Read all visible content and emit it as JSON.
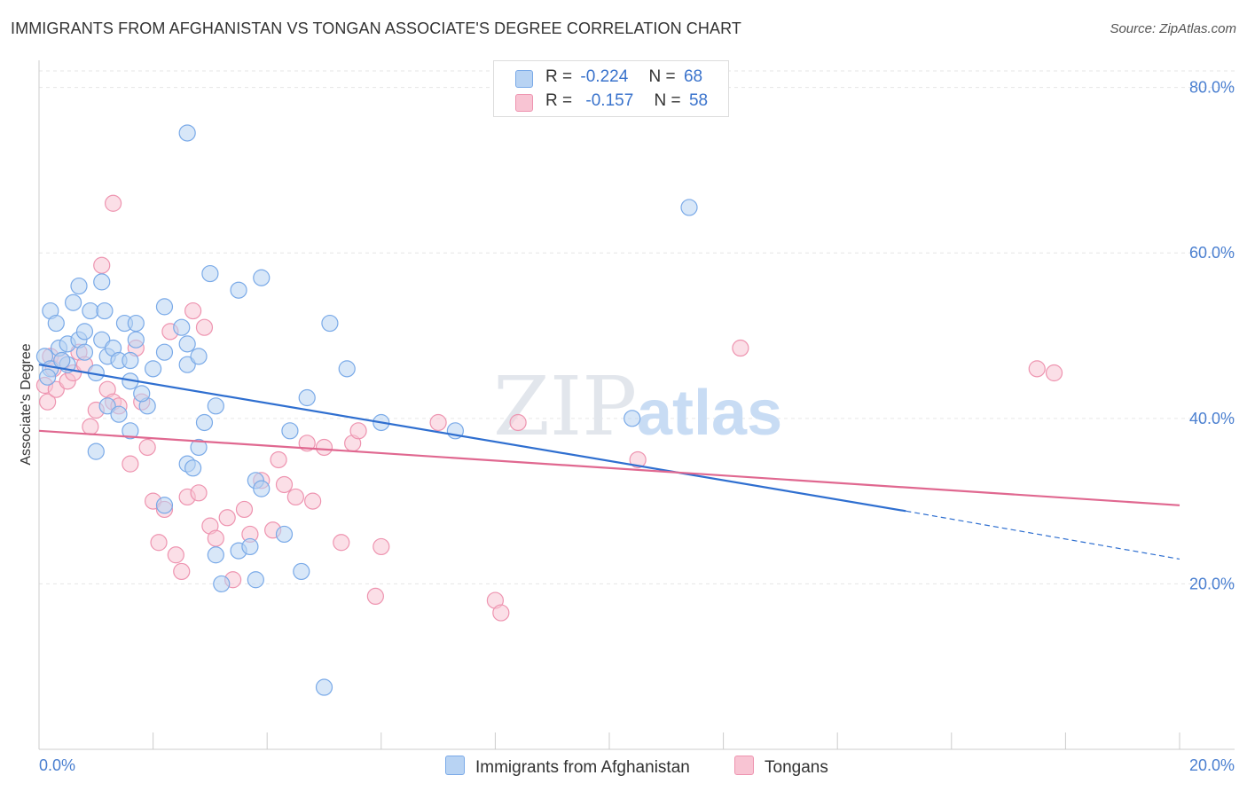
{
  "title": "IMMIGRANTS FROM AFGHANISTAN VS TONGAN ASSOCIATE'S DEGREE CORRELATION CHART",
  "source": "Source: ZipAtlas.com",
  "watermark": {
    "zip": "ZIP",
    "atlas": "atlas"
  },
  "legend_top": [
    {
      "r_label": "R =",
      "r_value": "-0.224",
      "n_label": "N =",
      "n_value": "68"
    },
    {
      "r_label": "R =",
      "r_value": "-0.157",
      "n_label": "N =",
      "n_value": "58"
    }
  ],
  "legend_bottom": [
    {
      "label": "Immigrants from Afghanistan"
    },
    {
      "label": "Tongans"
    }
  ],
  "colors": {
    "blue_fill": "#b8d3f3",
    "blue_stroke": "#7aaae8",
    "blue_line": "#2f6fd0",
    "pink_fill": "#f8c4d3",
    "pink_stroke": "#ee94b0",
    "pink_line": "#e06890",
    "tick_text": "#4a7fd0",
    "grid": "#e6e6e6"
  },
  "chart_data": {
    "type": "scatter",
    "title": "IMMIGRANTS FROM AFGHANISTAN VS TONGAN ASSOCIATE'S DEGREE CORRELATION CHART",
    "xlabel": "",
    "ylabel": "Associate's Degree",
    "xlim": [
      0,
      20
    ],
    "ylim": [
      0,
      82
    ],
    "x_tick_labels": [
      "0.0%",
      "20.0%"
    ],
    "y_ticks": [
      20,
      40,
      60,
      80
    ],
    "y_tick_labels": [
      "20.0%",
      "40.0%",
      "60.0%",
      "80.0%"
    ],
    "grid": true,
    "series": [
      {
        "name": "Immigrants from Afghanistan",
        "r": -0.224,
        "n": 68,
        "trend": {
          "x": [
            0,
            15.2
          ],
          "y": [
            46.5,
            28.8
          ],
          "dashed_to": [
            20,
            23.0
          ]
        },
        "points": [
          [
            0.1,
            47.5
          ],
          [
            0.2,
            46.0
          ],
          [
            0.15,
            45.0
          ],
          [
            0.2,
            53.0
          ],
          [
            0.3,
            51.5
          ],
          [
            0.35,
            48.5
          ],
          [
            0.5,
            49.0
          ],
          [
            0.6,
            54.0
          ],
          [
            0.7,
            56.0
          ],
          [
            0.7,
            49.5
          ],
          [
            0.8,
            48.0
          ],
          [
            0.9,
            53.0
          ],
          [
            1.1,
            49.5
          ],
          [
            1.1,
            56.5
          ],
          [
            1.15,
            53.0
          ],
          [
            1.2,
            47.5
          ],
          [
            1.3,
            48.5
          ],
          [
            1.4,
            47.0
          ],
          [
            1.5,
            51.5
          ],
          [
            1.6,
            47.0
          ],
          [
            1.7,
            51.5
          ],
          [
            1.7,
            49.5
          ],
          [
            2.2,
            53.5
          ],
          [
            2.2,
            48.0
          ],
          [
            2.5,
            51.0
          ],
          [
            2.6,
            49.0
          ],
          [
            2.6,
            74.5
          ],
          [
            2.6,
            46.5
          ],
          [
            2.8,
            47.5
          ],
          [
            3.0,
            57.5
          ],
          [
            3.5,
            55.5
          ],
          [
            3.9,
            57.0
          ],
          [
            1.0,
            36.0
          ],
          [
            1.2,
            41.5
          ],
          [
            1.4,
            40.5
          ],
          [
            1.6,
            44.5
          ],
          [
            1.6,
            38.5
          ],
          [
            1.9,
            41.5
          ],
          [
            2.2,
            29.5
          ],
          [
            2.6,
            34.5
          ],
          [
            2.7,
            34.0
          ],
          [
            2.8,
            36.5
          ],
          [
            2.9,
            39.5
          ],
          [
            3.1,
            41.5
          ],
          [
            3.1,
            23.5
          ],
          [
            3.2,
            20.0
          ],
          [
            3.5,
            24.0
          ],
          [
            3.7,
            24.5
          ],
          [
            3.8,
            20.5
          ],
          [
            3.8,
            32.5
          ],
          [
            3.9,
            31.5
          ],
          [
            4.3,
            26.0
          ],
          [
            4.4,
            38.5
          ],
          [
            4.6,
            21.5
          ],
          [
            4.7,
            42.5
          ],
          [
            5.1,
            51.5
          ],
          [
            5.4,
            46.0
          ],
          [
            6.0,
            39.5
          ],
          [
            7.3,
            38.5
          ],
          [
            10.4,
            40.0
          ],
          [
            11.4,
            65.5
          ],
          [
            5.0,
            7.5
          ],
          [
            0.5,
            46.5
          ],
          [
            0.8,
            50.5
          ],
          [
            1.0,
            45.5
          ],
          [
            0.4,
            47.0
          ],
          [
            1.8,
            43.0
          ],
          [
            2.0,
            46.0
          ]
        ]
      },
      {
        "name": "Tongans",
        "r": -0.157,
        "n": 58,
        "trend": {
          "x": [
            0,
            20
          ],
          "y": [
            38.5,
            29.5
          ]
        },
        "points": [
          [
            0.1,
            44.0
          ],
          [
            0.15,
            42.0
          ],
          [
            0.2,
            47.5
          ],
          [
            0.25,
            46.0
          ],
          [
            0.3,
            43.5
          ],
          [
            0.4,
            47.0
          ],
          [
            0.5,
            44.5
          ],
          [
            0.6,
            45.5
          ],
          [
            0.7,
            48.0
          ],
          [
            0.8,
            46.5
          ],
          [
            0.9,
            39.0
          ],
          [
            1.0,
            41.0
          ],
          [
            1.2,
            43.5
          ],
          [
            1.3,
            42.0
          ],
          [
            1.4,
            41.5
          ],
          [
            1.6,
            34.5
          ],
          [
            1.7,
            48.5
          ],
          [
            1.8,
            42.0
          ],
          [
            1.9,
            36.5
          ],
          [
            2.0,
            30.0
          ],
          [
            2.1,
            25.0
          ],
          [
            2.2,
            29.0
          ],
          [
            2.3,
            50.5
          ],
          [
            2.4,
            23.5
          ],
          [
            2.5,
            21.5
          ],
          [
            2.6,
            30.5
          ],
          [
            2.7,
            53.0
          ],
          [
            2.8,
            31.0
          ],
          [
            2.9,
            51.0
          ],
          [
            3.0,
            27.0
          ],
          [
            3.1,
            25.5
          ],
          [
            3.3,
            28.0
          ],
          [
            3.4,
            20.5
          ],
          [
            3.6,
            29.0
          ],
          [
            3.7,
            26.0
          ],
          [
            3.9,
            32.5
          ],
          [
            4.1,
            26.5
          ],
          [
            4.2,
            35.0
          ],
          [
            4.3,
            32.0
          ],
          [
            4.5,
            30.5
          ],
          [
            4.7,
            37.0
          ],
          [
            4.8,
            30.0
          ],
          [
            5.0,
            36.5
          ],
          [
            5.3,
            25.0
          ],
          [
            5.5,
            37.0
          ],
          [
            5.6,
            38.5
          ],
          [
            5.9,
            18.5
          ],
          [
            6.0,
            24.5
          ],
          [
            7.0,
            39.5
          ],
          [
            8.0,
            18.0
          ],
          [
            8.1,
            16.5
          ],
          [
            8.4,
            39.5
          ],
          [
            10.5,
            35.0
          ],
          [
            12.3,
            48.5
          ],
          [
            17.5,
            46.0
          ],
          [
            1.3,
            66.0
          ],
          [
            1.1,
            58.5
          ],
          [
            17.8,
            45.5
          ]
        ]
      }
    ]
  }
}
